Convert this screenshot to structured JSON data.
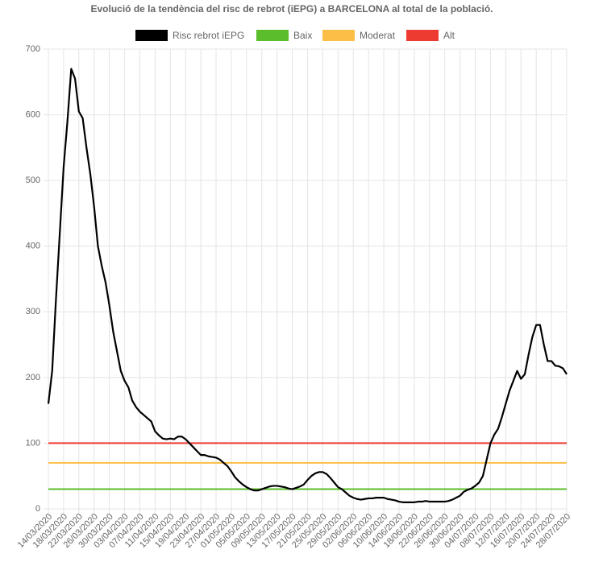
{
  "chart_data": {
    "type": "line",
    "title": "Evolució de la tendència del risc de rebrot (iEPG) a BARCELONA al total de la població.",
    "categories": [
      "14/03/2020",
      null,
      null,
      null,
      "18/03/2020",
      null,
      null,
      null,
      "22/03/2020",
      null,
      null,
      null,
      "26/03/2020",
      null,
      null,
      null,
      "30/03/2020",
      null,
      null,
      null,
      "03/04/2020",
      null,
      null,
      null,
      "07/04/2020",
      null,
      null,
      null,
      "11/04/2020",
      null,
      null,
      null,
      "15/04/2020",
      null,
      null,
      null,
      "19/04/2020",
      null,
      null,
      null,
      "23/04/2020",
      null,
      null,
      null,
      "27/04/2020",
      null,
      null,
      null,
      "01/05/2020",
      null,
      null,
      null,
      "05/05/2020",
      null,
      null,
      null,
      "09/05/2020",
      null,
      null,
      null,
      "13/05/2020",
      null,
      null,
      null,
      "17/05/2020",
      null,
      null,
      null,
      "21/05/2020",
      null,
      null,
      null,
      "25/05/2020",
      null,
      null,
      null,
      "29/05/2020",
      null,
      null,
      null,
      "02/06/2020",
      null,
      null,
      null,
      "06/06/2020",
      null,
      null,
      null,
      "10/06/2020",
      null,
      null,
      null,
      "14/06/2020",
      null,
      null,
      null,
      "18/06/2020",
      null,
      null,
      null,
      "22/06/2020",
      null,
      null,
      null,
      "26/06/2020",
      null,
      null,
      null,
      "30/06/2020",
      null,
      null,
      null,
      "04/07/2020",
      null,
      null,
      null,
      "08/07/2020",
      null,
      null,
      null,
      "12/07/2020",
      null,
      null,
      null,
      "16/07/2020",
      null,
      null,
      null,
      "20/07/2020",
      null,
      null,
      null,
      "24/07/2020",
      null,
      null,
      null,
      "28/07/2020"
    ],
    "series": [
      {
        "name": "Risc rebrot iEPG",
        "color": "#000000",
        "values": [
          160,
          210,
          320,
          420,
          520,
          590,
          670,
          655,
          605,
          595,
          550,
          510,
          460,
          400,
          370,
          345,
          310,
          270,
          240,
          210,
          195,
          185,
          165,
          155,
          148,
          143,
          138,
          133,
          118,
          112,
          107,
          106,
          107,
          106,
          110,
          110,
          106,
          100,
          94,
          88,
          82,
          82,
          80,
          79,
          78,
          75,
          70,
          65,
          57,
          48,
          42,
          37,
          33,
          30,
          28,
          28,
          30,
          32,
          34,
          35,
          35,
          34,
          33,
          31,
          30,
          32,
          34,
          37,
          44,
          50,
          54,
          56,
          56,
          53,
          47,
          40,
          33,
          30,
          25,
          20,
          17,
          15,
          14,
          15,
          16,
          16,
          17,
          17,
          17,
          15,
          14,
          13,
          11,
          10,
          10,
          10,
          10,
          11,
          11,
          12,
          11,
          11,
          11,
          11,
          11,
          12,
          14,
          17,
          20,
          26,
          29,
          31,
          35,
          40,
          50,
          75,
          100,
          113,
          122,
          140,
          160,
          180,
          195,
          210,
          198,
          205,
          235,
          262,
          280,
          280,
          250,
          225,
          225,
          218,
          217,
          214,
          205
        ]
      },
      {
        "name": "Baix",
        "color": "#5bbd2b",
        "values": [
          30,
          30,
          30,
          30,
          30,
          30,
          30,
          30,
          30,
          30,
          30,
          30,
          30,
          30,
          30,
          30,
          30,
          30,
          30,
          30,
          30,
          30,
          30,
          30,
          30,
          30,
          30,
          30,
          30,
          30,
          30,
          30,
          30,
          30,
          30,
          30,
          30,
          30,
          30,
          30,
          30,
          30,
          30,
          30,
          30,
          30,
          30,
          30,
          30,
          30,
          30,
          30,
          30,
          30,
          30,
          30,
          30,
          30,
          30,
          30,
          30,
          30,
          30,
          30,
          30,
          30,
          30,
          30,
          30,
          30,
          30,
          30,
          30,
          30,
          30,
          30,
          30,
          30,
          30,
          30,
          30,
          30,
          30,
          30,
          30,
          30,
          30,
          30,
          30,
          30,
          30,
          30,
          30,
          30,
          30,
          30,
          30,
          30,
          30,
          30,
          30,
          30,
          30,
          30,
          30,
          30,
          30,
          30,
          30,
          30,
          30,
          30,
          30,
          30,
          30,
          30,
          30,
          30,
          30,
          30,
          30,
          30,
          30,
          30,
          30,
          30,
          30,
          30,
          30,
          30,
          30,
          30,
          30,
          30,
          30,
          30,
          30
        ]
      },
      {
        "name": "Moderat",
        "color": "#fbbf47",
        "values": [
          70,
          70,
          70,
          70,
          70,
          70,
          70,
          70,
          70,
          70,
          70,
          70,
          70,
          70,
          70,
          70,
          70,
          70,
          70,
          70,
          70,
          70,
          70,
          70,
          70,
          70,
          70,
          70,
          70,
          70,
          70,
          70,
          70,
          70,
          70,
          70,
          70,
          70,
          70,
          70,
          70,
          70,
          70,
          70,
          70,
          70,
          70,
          70,
          70,
          70,
          70,
          70,
          70,
          70,
          70,
          70,
          70,
          70,
          70,
          70,
          70,
          70,
          70,
          70,
          70,
          70,
          70,
          70,
          70,
          70,
          70,
          70,
          70,
          70,
          70,
          70,
          70,
          70,
          70,
          70,
          70,
          70,
          70,
          70,
          70,
          70,
          70,
          70,
          70,
          70,
          70,
          70,
          70,
          70,
          70,
          70,
          70,
          70,
          70,
          70,
          70,
          70,
          70,
          70,
          70,
          70,
          70,
          70,
          70,
          70,
          70,
          70,
          70,
          70,
          70,
          70,
          70,
          70,
          70,
          70,
          70,
          70,
          70,
          70,
          70,
          70,
          70,
          70,
          70,
          70,
          70,
          70,
          70,
          70,
          70,
          70,
          70
        ]
      },
      {
        "name": "Alt",
        "color": "#ee3b32",
        "values": [
          100,
          100,
          100,
          100,
          100,
          100,
          100,
          100,
          100,
          100,
          100,
          100,
          100,
          100,
          100,
          100,
          100,
          100,
          100,
          100,
          100,
          100,
          100,
          100,
          100,
          100,
          100,
          100,
          100,
          100,
          100,
          100,
          100,
          100,
          100,
          100,
          100,
          100,
          100,
          100,
          100,
          100,
          100,
          100,
          100,
          100,
          100,
          100,
          100,
          100,
          100,
          100,
          100,
          100,
          100,
          100,
          100,
          100,
          100,
          100,
          100,
          100,
          100,
          100,
          100,
          100,
          100,
          100,
          100,
          100,
          100,
          100,
          100,
          100,
          100,
          100,
          100,
          100,
          100,
          100,
          100,
          100,
          100,
          100,
          100,
          100,
          100,
          100,
          100,
          100,
          100,
          100,
          100,
          100,
          100,
          100,
          100,
          100,
          100,
          100,
          100,
          100,
          100,
          100,
          100,
          100,
          100,
          100,
          100,
          100,
          100,
          100,
          100,
          100,
          100,
          100,
          100,
          100,
          100,
          100,
          100,
          100,
          100,
          100,
          100,
          100,
          100,
          100,
          100,
          100,
          100,
          100,
          100,
          100,
          100,
          100,
          100
        ]
      }
    ],
    "ylim": [
      0,
      700
    ],
    "yticks": [
      0,
      100,
      200,
      300,
      400,
      500,
      600,
      700
    ],
    "grid": true
  }
}
